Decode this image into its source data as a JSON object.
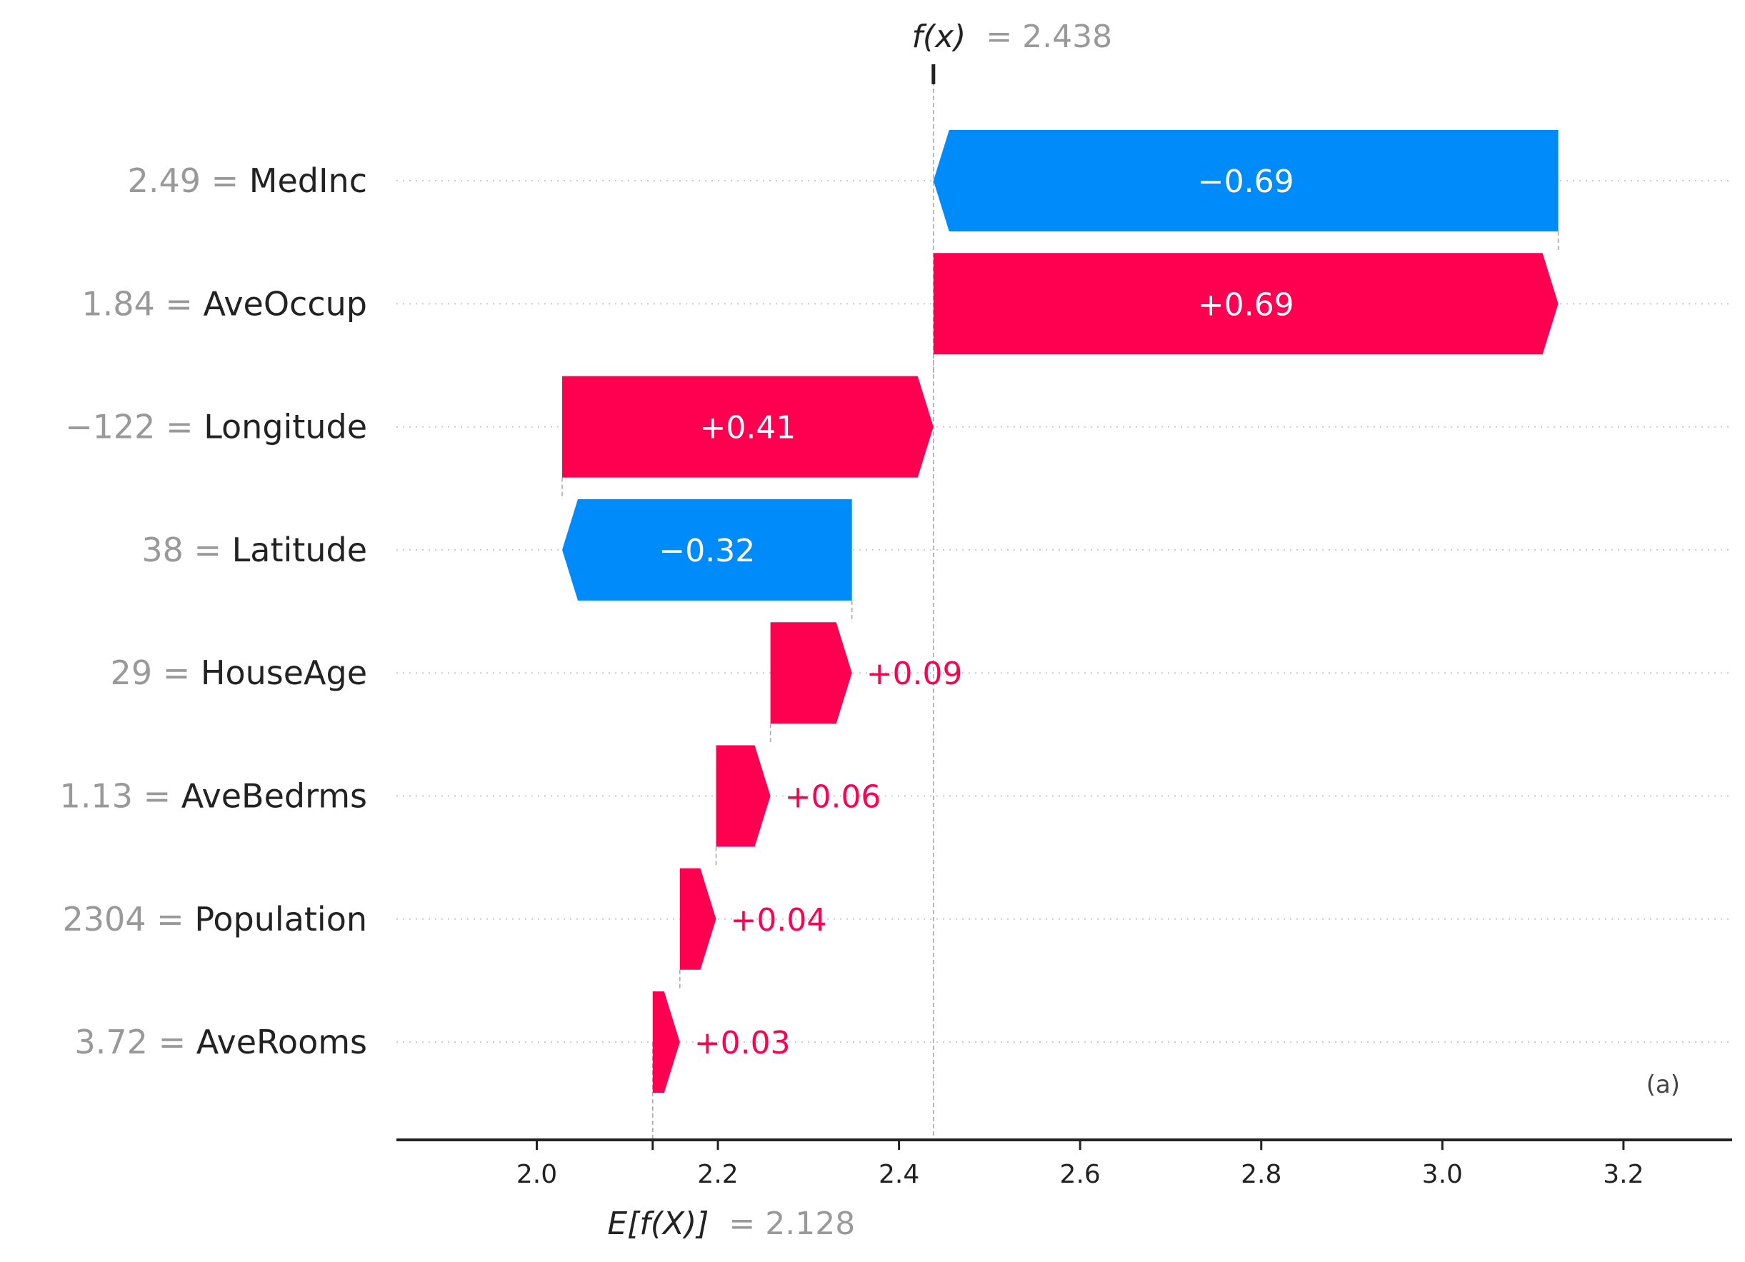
{
  "chart_data": {
    "type": "waterfall",
    "base_value": 2.128,
    "output_value": 2.438,
    "base_label": {
      "prefix": "E[f(X)]",
      "value_text": "= 2.128"
    },
    "output_label": {
      "prefix": "f(x)",
      "value_text": "= 2.438"
    },
    "xlim": [
      1.845,
      3.32
    ],
    "x_ticks": [
      2.0,
      2.2,
      2.4,
      2.6,
      2.8,
      3.0,
      3.2
    ],
    "x_tick_labels": [
      "2.0",
      "2.2",
      "2.4",
      "2.6",
      "2.8",
      "3.0",
      "3.2"
    ],
    "panel_label": "(a)",
    "features": [
      {
        "value_text": "2.49",
        "name": "MedInc",
        "contribution": -0.69,
        "label": "−0.69"
      },
      {
        "value_text": "1.84",
        "name": "AveOccup",
        "contribution": 0.69,
        "label": "+0.69"
      },
      {
        "value_text": "−122",
        "name": "Longitude",
        "contribution": 0.41,
        "label": "+0.41"
      },
      {
        "value_text": "38",
        "name": "Latitude",
        "contribution": -0.32,
        "label": "−0.32"
      },
      {
        "value_text": "29",
        "name": "HouseAge",
        "contribution": 0.09,
        "label": "+0.09"
      },
      {
        "value_text": "1.13",
        "name": "AveBedrms",
        "contribution": 0.06,
        "label": "+0.06"
      },
      {
        "value_text": "2304",
        "name": "Population",
        "contribution": 0.04,
        "label": "+0.04"
      },
      {
        "value_text": "3.72",
        "name": "AveRooms",
        "contribution": 0.03,
        "label": "+0.03"
      }
    ],
    "colors": {
      "positive": "#ff0051",
      "negative": "#008bfb",
      "text": "#222222",
      "muted": "#999999",
      "grid": "#cccccc"
    }
  }
}
